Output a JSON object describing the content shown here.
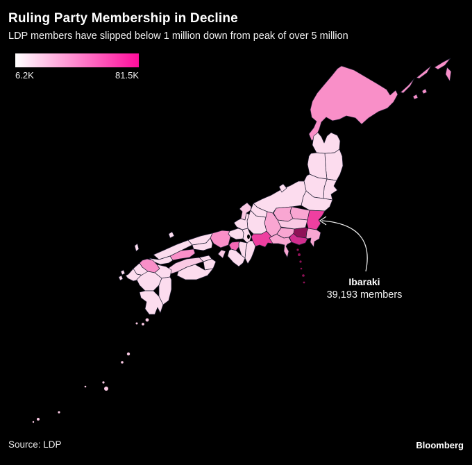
{
  "title": "Ruling Party Membership in Decline",
  "subtitle": "LDP members have slipped below 1 million down from peak of over 5 million",
  "legend": {
    "min_label": "6.2K",
    "max_label": "81.5K"
  },
  "annotation": {
    "name": "Ibaraki",
    "value": "39,193 members"
  },
  "footer": {
    "source": "Source: LDP",
    "brand": "Bloomberg"
  },
  "colors": {
    "background": "#000000",
    "text": "#ffffff",
    "border": "#1e1e32",
    "gradient_start": "#ffffff",
    "gradient_end": "#ff0d9c",
    "lake": "#000000",
    "levels": {
      "0": "#fcdcee",
      "1": "#fac9e4",
      "2": "#f9a6d2",
      "3": "#f98fc8",
      "4": "#f568b4",
      "5": "#ee3fa0",
      "6": "#d02e8e",
      "7": "#8f1157"
    }
  },
  "chart_data": {
    "type": "choropleth",
    "region": "Japan prefectures",
    "metric": "LDP party members per prefecture",
    "color_scale": {
      "style": "linear-gradient",
      "from": "#ffffff",
      "to": "#ff0d9c",
      "min_label": "6.2K",
      "max_label": "81.5K",
      "min_value": 6200,
      "max_value": 81500
    },
    "labeled_point": {
      "prefecture": "Ibaraki",
      "members": 39193
    },
    "level_note": "level is the color tone read from the image, 0 = lightest (fewest members) to 7 = darkest (most members)",
    "regions": [
      {
        "id": "hokkaido",
        "name": "Hokkaido",
        "level": 3
      },
      {
        "id": "aomori",
        "name": "Aomori",
        "level": 0
      },
      {
        "id": "iwate",
        "name": "Iwate",
        "level": 0
      },
      {
        "id": "akita",
        "name": "Akita",
        "level": 0
      },
      {
        "id": "miyagi",
        "name": "Miyagi",
        "level": 0
      },
      {
        "id": "yamagata",
        "name": "Yamagata",
        "level": 0
      },
      {
        "id": "fukushima",
        "name": "Fukushima",
        "level": 0
      },
      {
        "id": "niigata",
        "name": "Niigata",
        "level": 0
      },
      {
        "id": "tochigi",
        "name": "Tochigi",
        "level": 2
      },
      {
        "id": "gunma",
        "name": "Gunma",
        "level": 2
      },
      {
        "id": "ibaraki",
        "name": "Ibaraki",
        "level": 5
      },
      {
        "id": "saitama",
        "name": "Saitama",
        "level": 1
      },
      {
        "id": "tokyo",
        "name": "Tokyo",
        "level": 7
      },
      {
        "id": "chiba",
        "name": "Chiba",
        "level": 2
      },
      {
        "id": "kanagawa",
        "name": "Kanagawa",
        "level": 6
      },
      {
        "id": "yamanashi",
        "name": "Yamanashi",
        "level": 2
      },
      {
        "id": "nagano",
        "name": "Nagano",
        "level": 2
      },
      {
        "id": "shizuoka",
        "name": "Shizuoka",
        "level": 2
      },
      {
        "id": "aichi",
        "name": "Aichi",
        "level": 5
      },
      {
        "id": "gifu",
        "name": "Gifu",
        "level": 0
      },
      {
        "id": "toyama",
        "name": "Toyama",
        "level": 0
      },
      {
        "id": "ishikawa",
        "name": "Ishikawa",
        "level": 1
      },
      {
        "id": "fukui",
        "name": "Fukui",
        "level": 0
      },
      {
        "id": "shiga",
        "name": "Shiga",
        "level": 0
      },
      {
        "id": "kyoto",
        "name": "Kyoto",
        "level": 0
      },
      {
        "id": "mie",
        "name": "Mie",
        "level": 0
      },
      {
        "id": "nara",
        "name": "Nara",
        "level": 0
      },
      {
        "id": "osaka",
        "name": "Osaka",
        "level": 4
      },
      {
        "id": "wakayama",
        "name": "Wakayama",
        "level": 0
      },
      {
        "id": "hyogo",
        "name": "Hyogo",
        "level": 3
      },
      {
        "id": "awaji",
        "name": "Awaji (Hyogo)",
        "level": 1
      },
      {
        "id": "tottori",
        "name": "Tottori",
        "level": 0
      },
      {
        "id": "okayama",
        "name": "Okayama",
        "level": 0
      },
      {
        "id": "shimane",
        "name": "Shimane",
        "level": 0
      },
      {
        "id": "hiroshima",
        "name": "Hiroshima",
        "level": 3
      },
      {
        "id": "yamaguchi",
        "name": "Yamaguchi",
        "level": 0
      },
      {
        "id": "kagawa",
        "name": "Kagawa",
        "level": 0
      },
      {
        "id": "tokushima",
        "name": "Tokushima",
        "level": 0
      },
      {
        "id": "ehime",
        "name": "Ehime",
        "level": 1
      },
      {
        "id": "kochi",
        "name": "Kochi",
        "level": 0
      },
      {
        "id": "fukuoka",
        "name": "Fukuoka",
        "level": 3
      },
      {
        "id": "saga",
        "name": "Saga",
        "level": 0
      },
      {
        "id": "nagasaki",
        "name": "Nagasaki",
        "level": 0
      },
      {
        "id": "oita",
        "name": "Oita",
        "level": 0
      },
      {
        "id": "kumamoto",
        "name": "Kumamoto",
        "level": 0
      },
      {
        "id": "miyazaki",
        "name": "Miyazaki",
        "level": 0
      },
      {
        "id": "kagoshima",
        "name": "Kagoshima",
        "level": 0
      },
      {
        "id": "okinawa",
        "name": "Okinawa",
        "level": 1
      }
    ]
  }
}
